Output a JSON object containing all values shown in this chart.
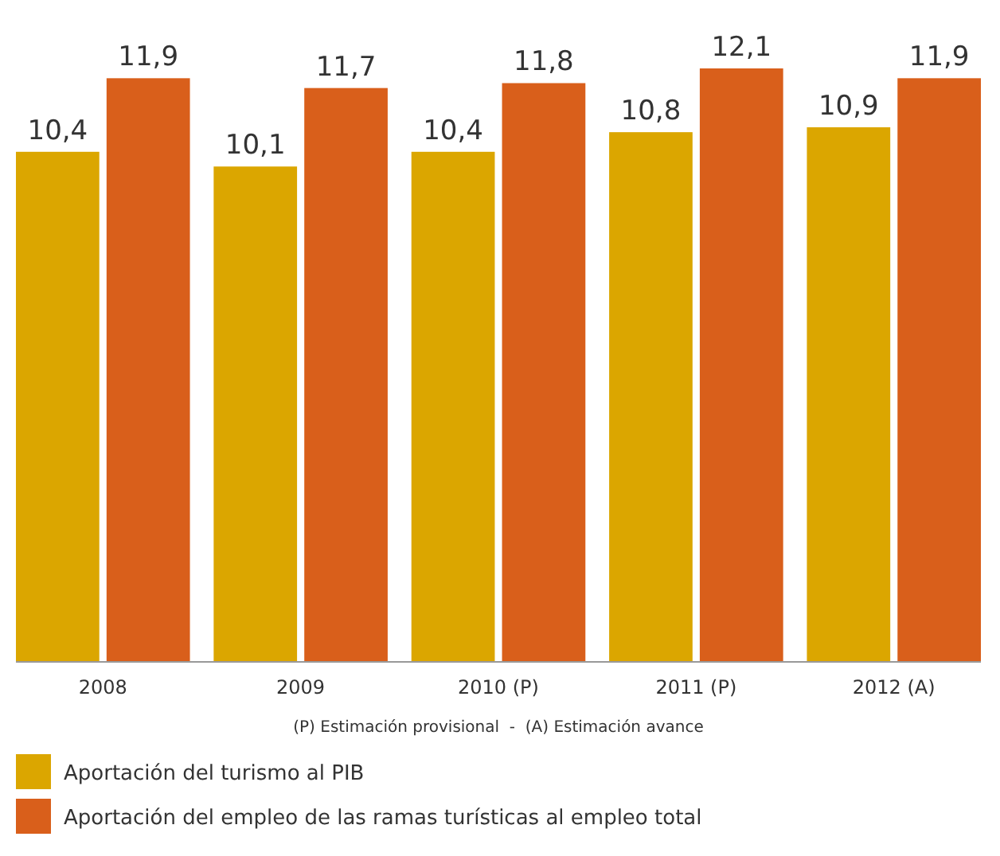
{
  "chart_data": {
    "type": "bar",
    "categories": [
      "2008",
      "2009",
      "2010 (P)",
      "2011 (P)",
      "2012 (A)"
    ],
    "series": [
      {
        "name": "Aportación del turismo al PIB",
        "color": "#dba600",
        "values": [
          10.4,
          10.1,
          10.4,
          10.8,
          10.9
        ],
        "value_labels": [
          "10,4",
          "10,1",
          "10,4",
          "10,8",
          "10,9"
        ]
      },
      {
        "name": "Aportación del empleo de las ramas turísticas al empleo total",
        "color": "#d95f1b",
        "values": [
          11.9,
          11.7,
          11.8,
          12.1,
          11.9
        ],
        "value_labels": [
          "11,9",
          "11,7",
          "11,8",
          "12,1",
          "11,9"
        ]
      }
    ],
    "tick_labels": "x",
    "legend": "bottom",
    "grid": false,
    "annotations": [
      "(P) Estimación provisional  -  (A) Estimación avance"
    ]
  }
}
